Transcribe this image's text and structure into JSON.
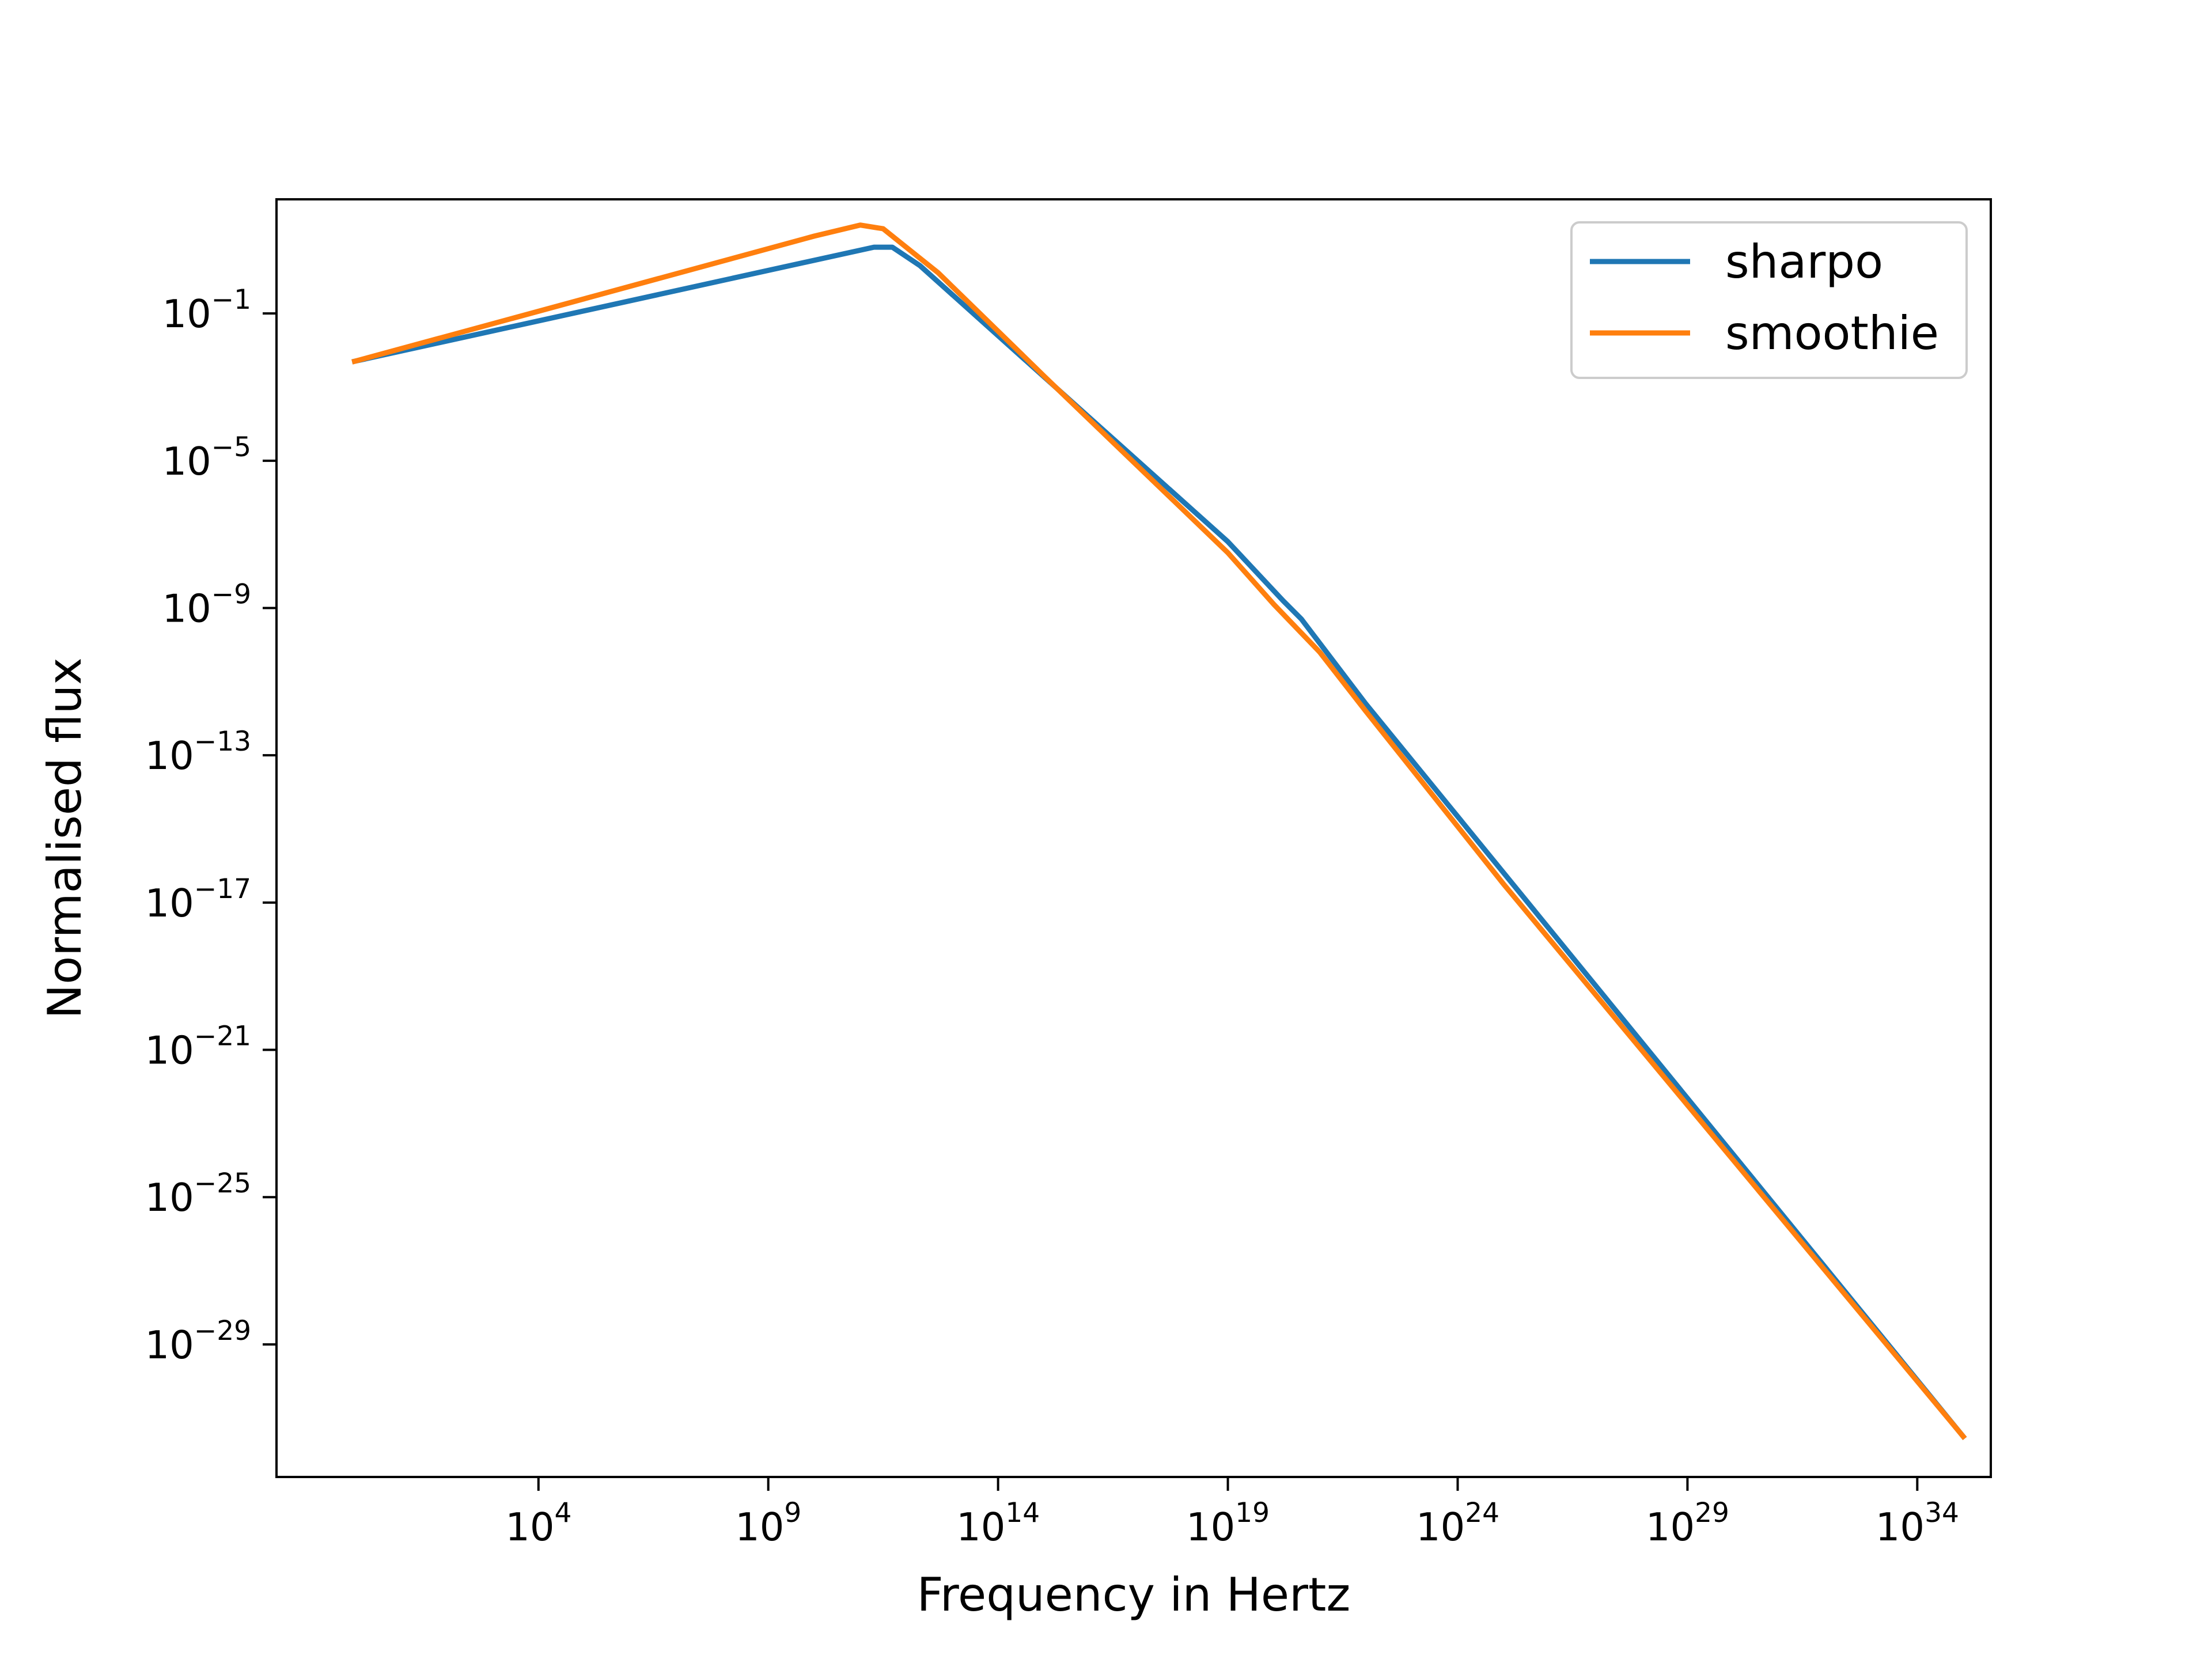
{
  "chart_data": {
    "type": "line",
    "title": "",
    "xlabel": "Frequency in Hertz",
    "ylabel": "Normalised flux",
    "xscale": "log",
    "yscale": "log",
    "xlim_log10": [
      -1.7,
      35.6
    ],
    "ylim_log10": [
      -32.6,
      2.1
    ],
    "x_ticks": [
      {
        "base": "10",
        "exp": "4",
        "value_log10": 4
      },
      {
        "base": "10",
        "exp": "9",
        "value_log10": 9
      },
      {
        "base": "10",
        "exp": "14",
        "value_log10": 14
      },
      {
        "base": "10",
        "exp": "19",
        "value_log10": 19
      },
      {
        "base": "10",
        "exp": "24",
        "value_log10": 24
      },
      {
        "base": "10",
        "exp": "29",
        "value_log10": 29
      },
      {
        "base": "10",
        "exp": "34",
        "value_log10": 34
      }
    ],
    "y_ticks": [
      {
        "base": "10",
        "exp": "−1",
        "value_log10": -1
      },
      {
        "base": "10",
        "exp": "−5",
        "value_log10": -5
      },
      {
        "base": "10",
        "exp": "−9",
        "value_log10": -9
      },
      {
        "base": "10",
        "exp": "−13",
        "value_log10": -13
      },
      {
        "base": "10",
        "exp": "−17",
        "value_log10": -17
      },
      {
        "base": "10",
        "exp": "−21",
        "value_log10": -21
      },
      {
        "base": "10",
        "exp": "−25",
        "value_log10": -25
      },
      {
        "base": "10",
        "exp": "−29",
        "value_log10": -29
      }
    ],
    "grid": false,
    "legend_position": "top-right",
    "series": [
      {
        "name": "sharpo",
        "color": "#1f77b4",
        "x_log10": [
          0,
          11.3,
          11.7,
          12.3,
          19,
          20.2,
          20.6,
          22,
          35
        ],
        "y_log10": [
          -2.3,
          0.8,
          0.8,
          0.3,
          -7.2,
          -8.8,
          -9.3,
          -11.6,
          -31.5
        ]
      },
      {
        "name": "smoothie",
        "color": "#ff7f0e",
        "x_log10": [
          0,
          5,
          10,
          11,
          11.5,
          12,
          12.7,
          15,
          19,
          20,
          21,
          22,
          25,
          30,
          35
        ],
        "y_log10": [
          -2.3,
          -0.6,
          1.1,
          1.4,
          1.3,
          0.8,
          0.1,
          -2.7,
          -7.5,
          -8.9,
          -10.2,
          -11.8,
          -16.5,
          -24,
          -31.5
        ]
      }
    ]
  }
}
